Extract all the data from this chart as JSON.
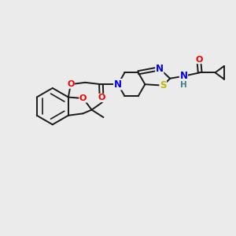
{
  "background_color": "#ebebeb",
  "figure_size": [
    3.0,
    3.0
  ],
  "dpi": 100,
  "colors": {
    "C": "#1a1a1a",
    "N": "#0000ee",
    "O": "#ee0000",
    "S": "#bbbb00",
    "H": "#408080",
    "bond": "#1a1a1a"
  },
  "bond_lw": 1.4,
  "font_size": 8.5
}
